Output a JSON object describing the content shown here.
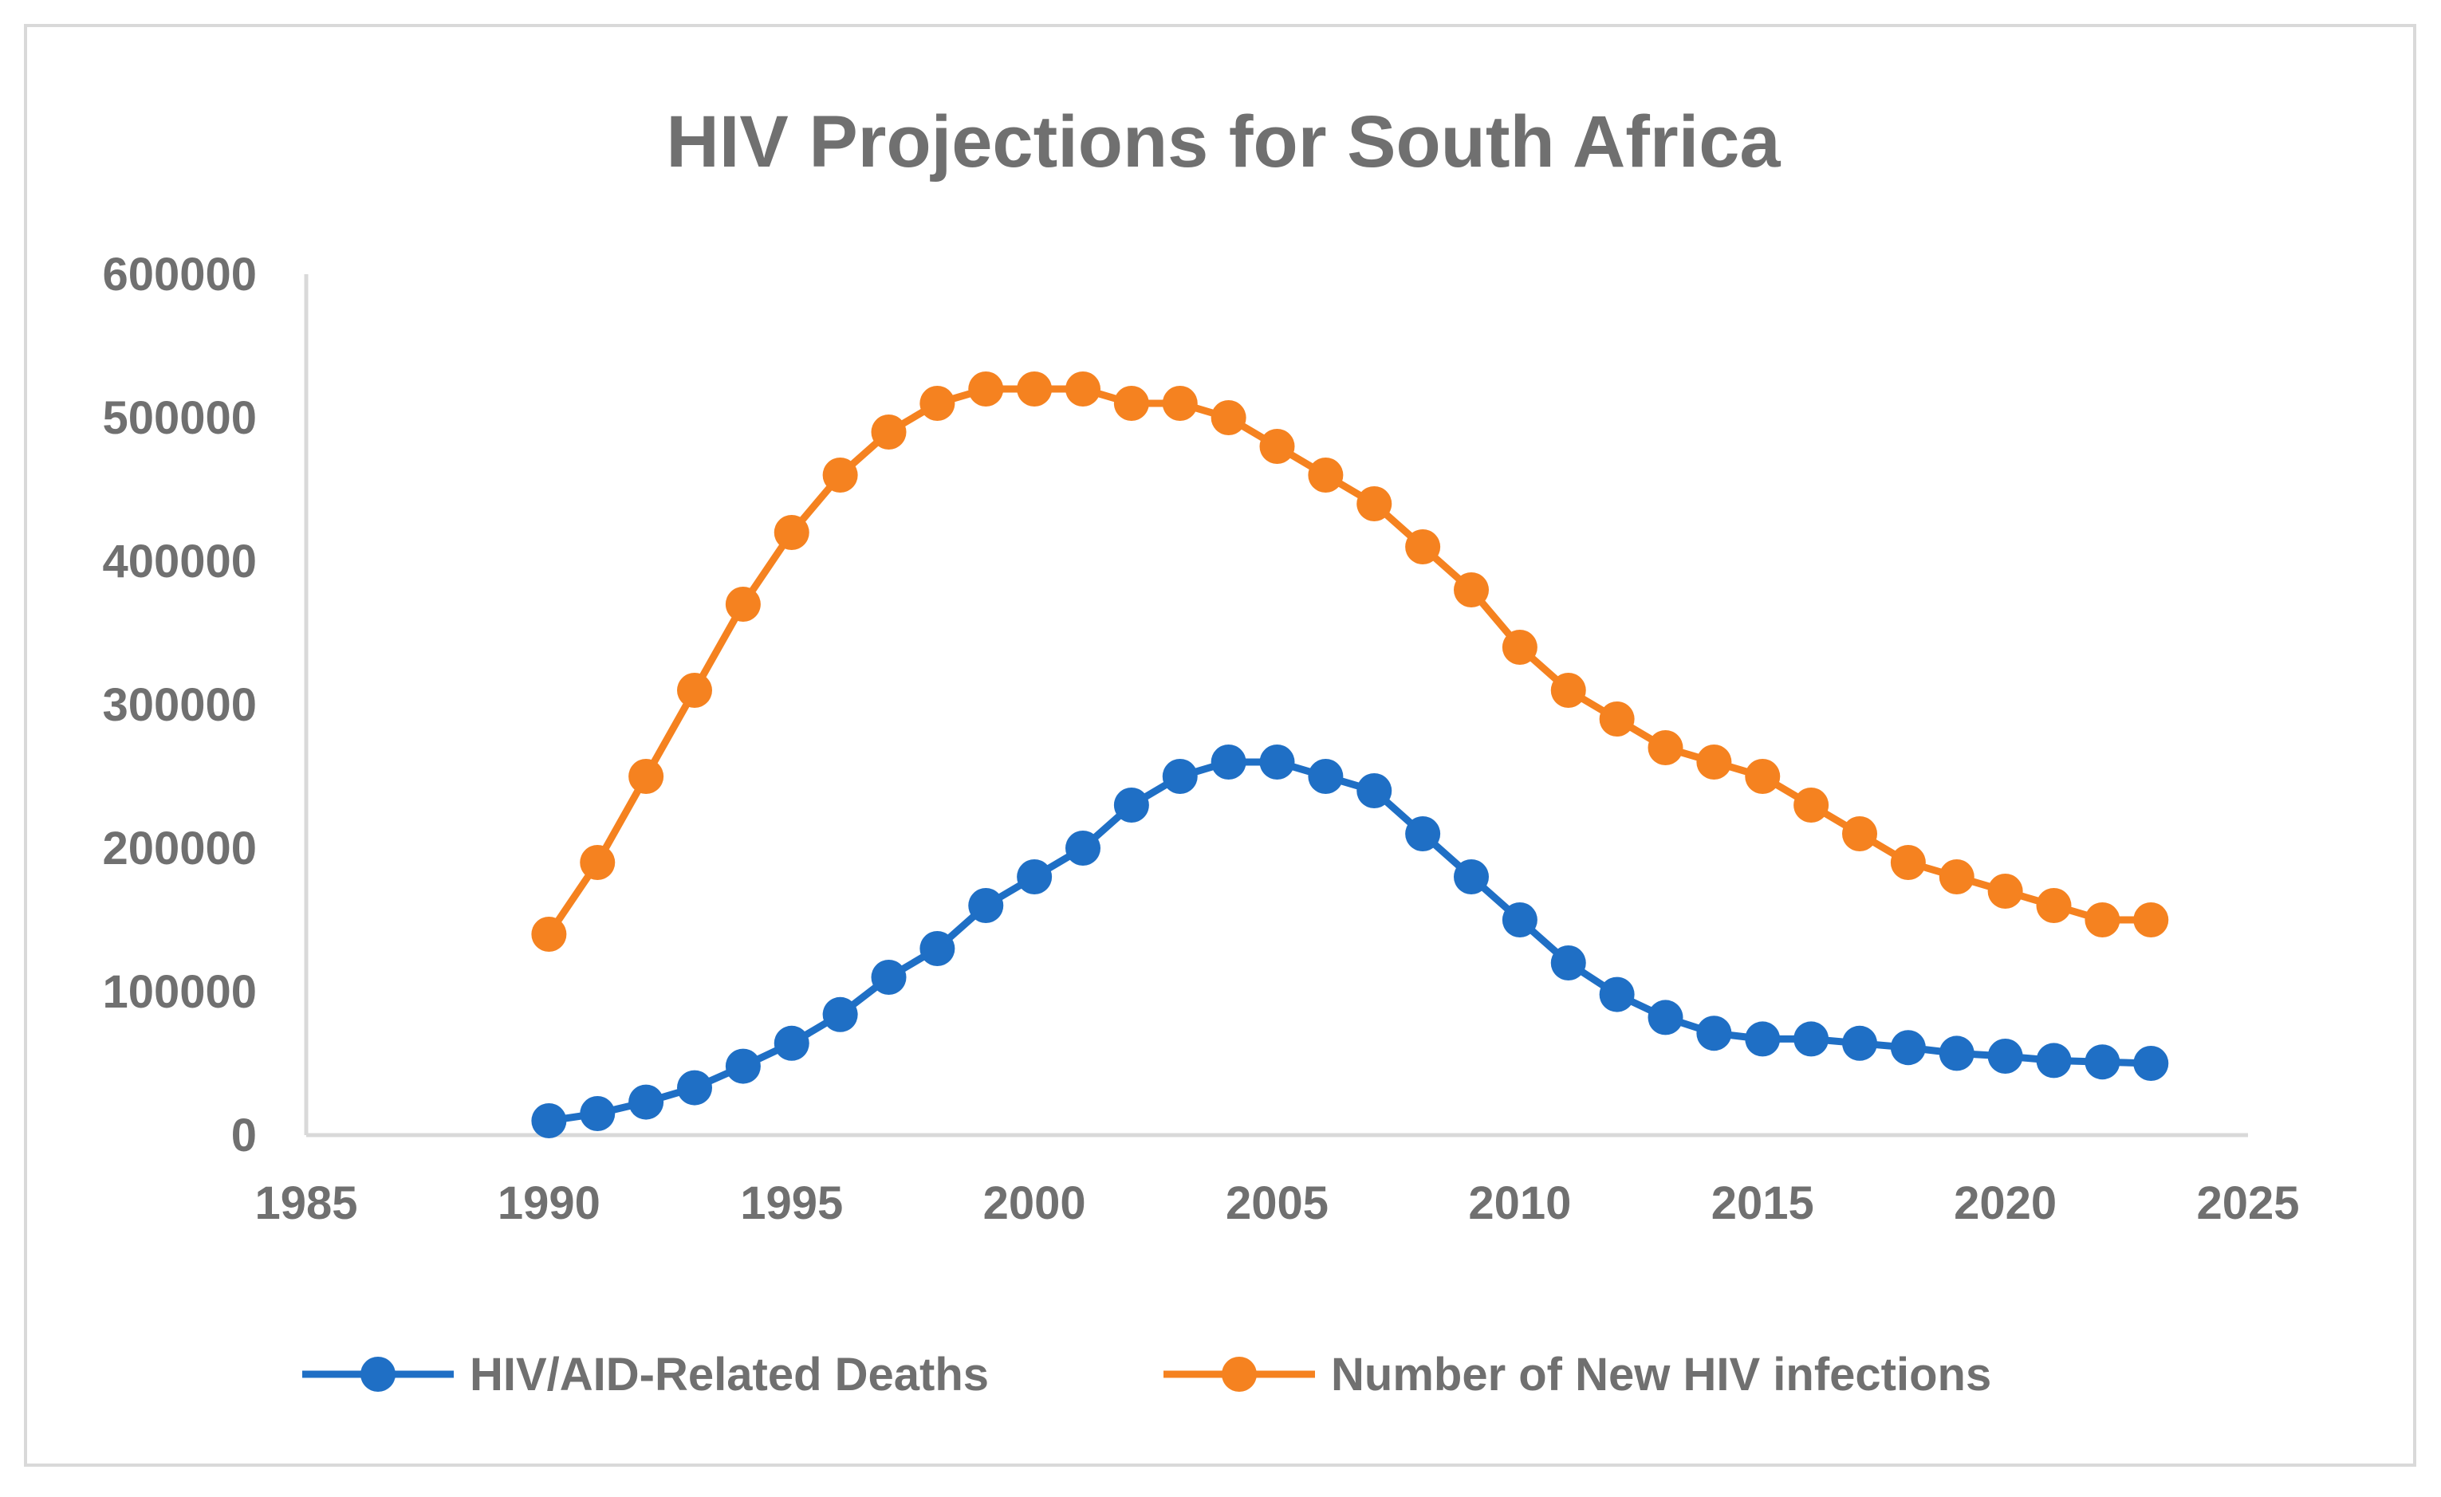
{
  "chart_data": {
    "type": "line",
    "title": "HIV Projections for South Africa",
    "xlabel": "",
    "ylabel": "",
    "xlim": [
      1985,
      2025
    ],
    "ylim": [
      0,
      600000
    ],
    "x_ticks": [
      "1985",
      "1990",
      "1995",
      "2000",
      "2005",
      "2010",
      "2015",
      "2020",
      "2025"
    ],
    "y_ticks": [
      "0",
      "100000",
      "200000",
      "300000",
      "400000",
      "500000",
      "600000"
    ],
    "grid": false,
    "legend_position": "bottom",
    "x": [
      1990,
      1991,
      1992,
      1993,
      1994,
      1995,
      1996,
      1997,
      1998,
      1999,
      2000,
      2001,
      2002,
      2003,
      2004,
      2005,
      2006,
      2007,
      2008,
      2009,
      2010,
      2011,
      2012,
      2013,
      2014,
      2015,
      2016,
      2017,
      2018,
      2019,
      2020,
      2021,
      2022,
      2023
    ],
    "series": [
      {
        "name": "HIV/AID-Related Deaths",
        "color": "#1f6fc5",
        "values": [
          10000,
          15000,
          23000,
          33000,
          48000,
          64000,
          84000,
          110000,
          130000,
          160000,
          180000,
          200000,
          230000,
          250000,
          260000,
          260000,
          250000,
          240000,
          210000,
          180000,
          150000,
          120000,
          98000,
          82000,
          71000,
          67000,
          67000,
          64000,
          61000,
          57000,
          55000,
          52000,
          51000,
          50000
        ]
      },
      {
        "name": "Number of New HIV infections",
        "color": "#f58220",
        "values": [
          140000,
          190000,
          250000,
          310000,
          370000,
          420000,
          460000,
          490000,
          510000,
          520000,
          520000,
          520000,
          510000,
          510000,
          500000,
          480000,
          460000,
          440000,
          410000,
          380000,
          340000,
          310000,
          290000,
          270000,
          260000,
          250000,
          230000,
          210000,
          190000,
          180000,
          170000,
          160000,
          150000,
          150000
        ]
      }
    ]
  }
}
